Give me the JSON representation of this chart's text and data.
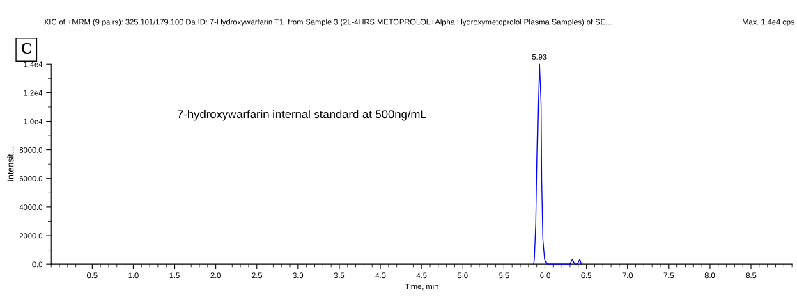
{
  "chart_data": {
    "type": "line",
    "title": "XIC of +MRM (9 pairs): 325.101/179.100 Da ID: 7-Hydroxywarfarin T1  from Sample 3 (2L-4HRS METOPROLOL+Alpha Hydroxymetoprolol Plasma Samples) of SE...",
    "xlabel": "Time, min",
    "ylabel": "Intensit...",
    "series": [
      {
        "color": "#0000ff",
        "x": [
          5.86,
          5.869,
          5.888,
          5.902,
          5.916,
          5.93,
          5.95,
          5.958,
          5.973,
          5.996,
          6.024,
          6.3,
          6.33,
          6.36,
          6.39,
          6.42,
          6.44
        ],
        "values": [
          0,
          340,
          2900,
          7500,
          11200,
          14000,
          11200,
          5850,
          1800,
          340,
          0,
          0,
          360,
          0,
          0,
          360,
          0
        ]
      }
    ],
    "xlim": [
      0.0,
      9.0
    ],
    "ylim": [
      0,
      14000
    ],
    "xticks": [
      0.5,
      {
        "value": 1,
        "label": "1.0"
      },
      1.5,
      {
        "value": 2,
        "label": "2.0"
      },
      2.5,
      {
        "value": 3,
        "label": "3.0"
      },
      3.5,
      {
        "value": 4,
        "label": "4.0"
      },
      4.5,
      {
        "value": 5,
        "label": "5.0"
      },
      5.5,
      {
        "value": 6,
        "label": "6.0"
      },
      6.5,
      {
        "value": 7,
        "label": "7.0"
      },
      7.5,
      {
        "value": 8,
        "label": "8.0"
      },
      8.5
    ],
    "yticks": [
      {
        "value": 0,
        "label": "0.0"
      },
      {
        "value": 2000,
        "label": "2000.0"
      },
      {
        "value": 4000,
        "label": "4000.0"
      },
      {
        "value": 6000,
        "label": "6000.0"
      },
      {
        "value": 8000,
        "label": "8000.0"
      },
      {
        "value": 10000,
        "label": "1.0e4"
      },
      {
        "value": 12000,
        "label": "1.2e4"
      },
      {
        "value": 14000,
        "label": "1.4e4"
      }
    ],
    "annotations": [
      {
        "text": "5.93",
        "x": 5.93,
        "y": 14000
      },
      "7-hydroxywarfarin internal standard at 500ng/mL",
      "Max. 1.4e4 cps",
      "C"
    ],
    "grid": false,
    "marker": "none",
    "line_style": "solid"
  }
}
